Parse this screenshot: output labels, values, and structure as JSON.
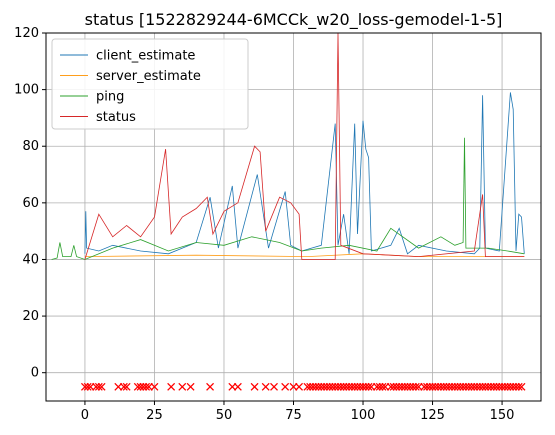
{
  "chart_data": {
    "type": "line",
    "title": "status [1522829244-6MCCk_w20_loss-gemodel-1-5]",
    "xlabel": "",
    "ylabel": "",
    "xlim": [
      -14,
      164
    ],
    "ylim": [
      -10,
      120
    ],
    "xticks": [
      0,
      25,
      50,
      75,
      100,
      125,
      150
    ],
    "yticks": [
      0,
      20,
      40,
      60,
      80,
      100,
      120
    ],
    "grid": true,
    "legend_placement": "top-left",
    "series": [
      {
        "name": "client_estimate",
        "color": "#1f77b4",
        "points": [
          [
            0,
            42
          ],
          [
            0.3,
            57
          ],
          [
            0.6,
            44
          ],
          [
            5,
            43
          ],
          [
            10,
            45
          ],
          [
            20,
            43
          ],
          [
            30,
            42
          ],
          [
            40,
            46
          ],
          [
            45,
            62
          ],
          [
            48,
            44
          ],
          [
            53,
            66
          ],
          [
            55,
            44
          ],
          [
            62,
            70
          ],
          [
            66,
            44
          ],
          [
            72,
            64
          ],
          [
            74,
            45
          ],
          [
            78,
            43
          ],
          [
            85,
            45
          ],
          [
            90,
            88
          ],
          [
            91,
            45
          ],
          [
            93,
            56
          ],
          [
            95,
            42
          ],
          [
            97,
            88
          ],
          [
            98,
            49
          ],
          [
            100,
            89
          ],
          [
            101,
            79
          ],
          [
            102,
            76
          ],
          [
            103,
            43
          ],
          [
            110,
            45
          ],
          [
            113,
            51
          ],
          [
            116,
            42
          ],
          [
            120,
            45
          ],
          [
            130,
            43
          ],
          [
            140,
            42
          ],
          [
            142,
            44
          ],
          [
            143,
            98
          ],
          [
            144,
            44
          ],
          [
            149,
            43
          ],
          [
            153,
            99
          ],
          [
            154,
            93
          ],
          [
            155,
            43
          ],
          [
            156,
            56
          ],
          [
            157,
            55
          ],
          [
            158,
            42
          ]
        ]
      },
      {
        "name": "server_estimate",
        "color": "#ff9f1c",
        "points": [
          [
            0,
            41
          ],
          [
            40,
            41.5
          ],
          [
            80,
            41
          ],
          [
            100,
            42
          ],
          [
            120,
            41
          ],
          [
            140,
            41
          ],
          [
            158,
            41
          ]
        ]
      },
      {
        "name": "ping",
        "color": "#2ca02c",
        "points": [
          [
            -12,
            40
          ],
          [
            -10,
            40.5
          ],
          [
            -9,
            46
          ],
          [
            -8,
            41
          ],
          [
            -5,
            41
          ],
          [
            -4,
            45
          ],
          [
            -3,
            41
          ],
          [
            0,
            40
          ],
          [
            10,
            44
          ],
          [
            20,
            47
          ],
          [
            30,
            43
          ],
          [
            40,
            46
          ],
          [
            50,
            45
          ],
          [
            60,
            48
          ],
          [
            70,
            46
          ],
          [
            78,
            43
          ],
          [
            85,
            44
          ],
          [
            95,
            45
          ],
          [
            105,
            43
          ],
          [
            110,
            51
          ],
          [
            120,
            44
          ],
          [
            128,
            48
          ],
          [
            133,
            45
          ],
          [
            136,
            46
          ],
          [
            136.5,
            83
          ],
          [
            137,
            44
          ],
          [
            145,
            44
          ],
          [
            152,
            43
          ],
          [
            158,
            42
          ]
        ]
      },
      {
        "name": "status",
        "color": "#d62728",
        "points": [
          [
            0,
            40
          ],
          [
            5,
            56
          ],
          [
            10,
            48
          ],
          [
            15,
            52
          ],
          [
            20,
            48
          ],
          [
            25,
            55
          ],
          [
            29,
            79
          ],
          [
            31,
            49
          ],
          [
            35,
            55
          ],
          [
            40,
            58
          ],
          [
            44,
            62
          ],
          [
            46,
            49
          ],
          [
            50,
            57
          ],
          [
            55,
            60
          ],
          [
            61,
            80
          ],
          [
            63,
            78
          ],
          [
            65,
            50
          ],
          [
            70,
            62
          ],
          [
            74,
            60
          ],
          [
            77,
            56
          ],
          [
            78,
            40
          ],
          [
            90,
            40
          ],
          [
            91,
            120
          ],
          [
            92,
            45
          ],
          [
            100,
            42
          ],
          [
            120,
            41
          ],
          [
            140,
            43
          ],
          [
            143,
            63
          ],
          [
            144,
            41
          ],
          [
            158,
            41
          ]
        ]
      }
    ],
    "markers": {
      "y": -5,
      "color": "#ff0000",
      "shape": "x",
      "x": [
        0,
        1,
        2,
        4,
        5,
        6,
        12,
        14,
        15,
        19,
        20,
        21,
        22,
        23,
        25,
        31,
        35,
        38,
        45,
        53,
        55,
        61,
        65,
        68,
        72,
        75,
        77,
        80,
        81,
        82,
        83,
        84,
        85,
        86,
        87,
        88,
        89,
        90,
        91,
        92,
        93,
        94,
        95,
        96,
        97,
        98,
        99,
        100,
        101,
        102,
        103,
        105,
        106,
        107,
        108,
        110,
        111,
        112,
        113,
        114,
        115,
        116,
        117,
        118,
        119,
        120,
        122,
        123,
        124,
        125,
        126,
        127,
        128,
        129,
        130,
        131,
        132,
        133,
        134,
        135,
        136,
        137,
        138,
        139,
        140,
        141,
        142,
        143,
        144,
        145,
        146,
        147,
        148,
        149,
        150,
        151,
        152,
        153,
        154,
        155,
        156,
        157
      ]
    }
  }
}
